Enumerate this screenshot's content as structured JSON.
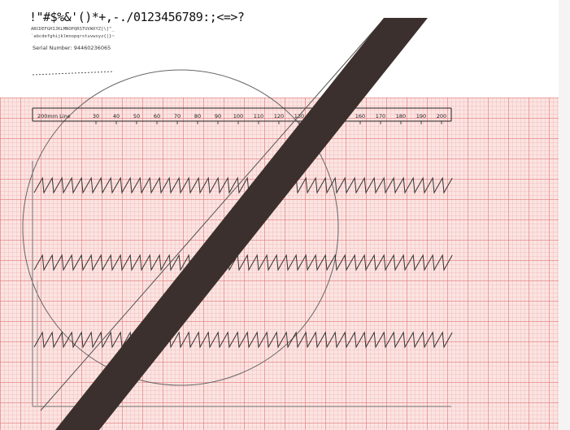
{
  "header": {
    "char_row_1": "!\"#$%&'()*+,-./0123456789:;<=>?",
    "char_row_2": "ABCDEFGHIJKLMNOPQRSTUVWXYZ[\\]^_",
    "char_row_3": "`abcdefghijklmnopqrstuvwxyz{|}~",
    "serial_label": "Serial Number:",
    "serial_value": "94460236065"
  },
  "scale": {
    "label": "200mm Line",
    "ticks": [
      "30",
      "40",
      "50",
      "60",
      "70",
      "80",
      "90",
      "100",
      "110",
      "120",
      "130",
      "160",
      "170",
      "180",
      "190",
      "200"
    ]
  },
  "colors": {
    "grid_major": "#e17878",
    "grid_background": "#fbe4e2",
    "diagonal_band": "#3b302d",
    "trace": "#333333"
  }
}
